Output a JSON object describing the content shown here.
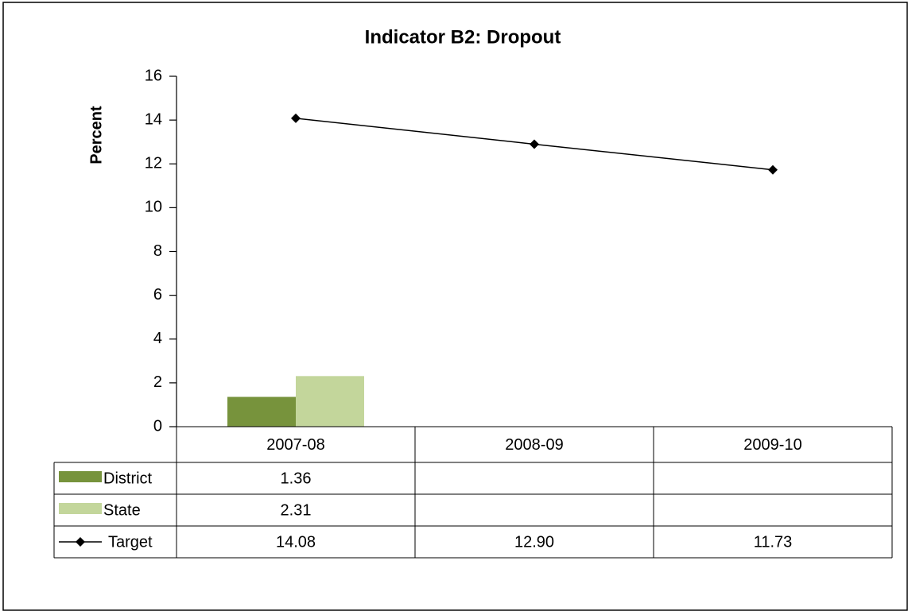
{
  "chart_data": {
    "type": "bar",
    "title": "Indicator B2: Dropout",
    "y_label": "Percent",
    "categories": [
      "2007-08",
      "2008-09",
      "2009-10"
    ],
    "series": [
      {
        "name": "District",
        "color": "#77933c",
        "values": [
          1.36,
          null,
          null
        ]
      },
      {
        "name": "State",
        "color": "#c3d69b",
        "values": [
          2.31,
          null,
          null
        ]
      },
      {
        "name": "Target",
        "type": "line",
        "color": "#000000",
        "values": [
          14.08,
          12.9,
          11.73
        ],
        "value_labels": [
          "14.08",
          "12.90",
          "11.73"
        ]
      }
    ],
    "ylim": [
      0,
      16
    ],
    "yticks": [
      0,
      2,
      4,
      6,
      8,
      10,
      12,
      14,
      16
    ],
    "grid": false,
    "data_table": true
  }
}
